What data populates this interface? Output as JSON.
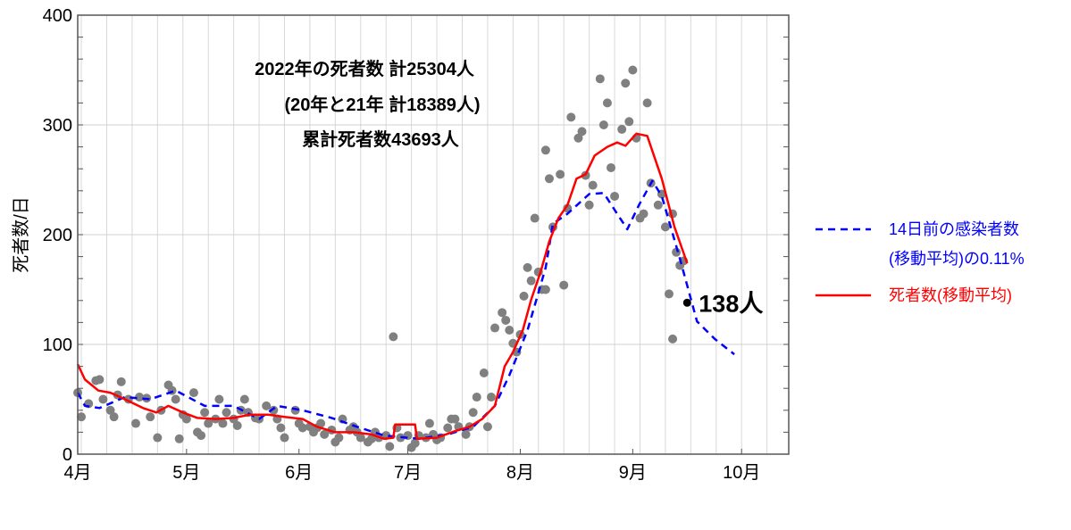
{
  "chart_data": {
    "type": "scatter+line",
    "ylabel": "死者数/日",
    "ylim": [
      0,
      400
    ],
    "yticks": [
      0,
      100,
      200,
      300,
      400
    ],
    "xlim_days_from_apr1": [
      0,
      196
    ],
    "xticks": [
      {
        "label": "4月",
        "day": 0
      },
      {
        "label": "5月",
        "day": 30
      },
      {
        "label": "6月",
        "day": 61
      },
      {
        "label": "7月",
        "day": 91
      },
      {
        "label": "8月",
        "day": 122
      },
      {
        "label": "9月",
        "day": 153
      },
      {
        "label": "10月",
        "day": 183
      }
    ],
    "grid": true,
    "annotations": [
      "2022年の死者数  計25304人",
      "(20年と21年 計18389人)",
      "累計死者数43693人"
    ],
    "last_point": {
      "day": 168,
      "value": 138,
      "label": "138人"
    },
    "legend": {
      "placement": "right-outside",
      "entries": [
        {
          "label_lines": [
            "14日前の感染者数",
            "(移動平均)の0.11%"
          ],
          "color": "#0000ff",
          "style": "dashed"
        },
        {
          "label_lines": [
            "死者数(移動平均)"
          ],
          "color": "#ff0000",
          "style": "solid"
        }
      ]
    },
    "series": [
      {
        "name": "14日前の感染者数(移動平均)の0.11%",
        "type": "line",
        "color": "#0000ff",
        "points": [
          [
            0,
            56
          ],
          [
            2,
            44
          ],
          [
            6,
            42
          ],
          [
            13,
            52
          ],
          [
            20,
            50
          ],
          [
            27,
            58
          ],
          [
            35,
            44
          ],
          [
            43,
            44
          ],
          [
            50,
            32
          ],
          [
            55,
            44
          ],
          [
            62,
            40
          ],
          [
            70,
            33
          ],
          [
            77,
            25
          ],
          [
            84.5,
            17
          ],
          [
            94,
            14
          ],
          [
            102,
            18
          ],
          [
            109,
            25
          ],
          [
            115,
            44
          ],
          [
            119,
            72
          ],
          [
            124,
            113
          ],
          [
            129,
            170
          ],
          [
            131,
            210
          ],
          [
            135,
            219
          ],
          [
            141,
            237
          ],
          [
            145,
            238
          ],
          [
            148.7,
            219
          ],
          [
            151.5,
            205
          ],
          [
            154.7,
            227
          ],
          [
            158.4,
            249
          ],
          [
            161,
            235
          ],
          [
            166,
            178
          ],
          [
            170.7,
            121
          ],
          [
            175.6,
            105
          ],
          [
            181,
            91
          ]
        ]
      },
      {
        "name": "死者数(移動平均)",
        "type": "line",
        "color": "#ff0000",
        "points": [
          [
            0,
            82
          ],
          [
            2,
            68
          ],
          [
            5.7,
            58
          ],
          [
            9,
            56
          ],
          [
            13,
            50
          ],
          [
            18,
            42
          ],
          [
            21.7,
            38
          ],
          [
            25,
            44
          ],
          [
            29,
            38
          ],
          [
            33,
            33
          ],
          [
            38,
            32
          ],
          [
            43,
            33
          ],
          [
            47.5,
            36
          ],
          [
            52.5,
            36
          ],
          [
            57,
            34
          ],
          [
            62,
            32
          ],
          [
            66,
            25
          ],
          [
            71,
            20
          ],
          [
            76,
            20
          ],
          [
            81,
            18
          ],
          [
            84.5,
            14
          ],
          [
            87,
            15
          ],
          [
            87.5,
            27
          ],
          [
            93,
            27
          ],
          [
            93.5,
            14
          ],
          [
            99,
            15
          ],
          [
            104,
            21
          ],
          [
            108,
            25
          ],
          [
            111.5,
            32
          ],
          [
            115,
            44
          ],
          [
            117.7,
            80
          ],
          [
            120,
            93
          ],
          [
            122.7,
            113
          ],
          [
            125,
            141
          ],
          [
            127.6,
            166
          ],
          [
            130,
            194
          ],
          [
            132.5,
            215
          ],
          [
            135,
            227
          ],
          [
            137.5,
            251
          ],
          [
            140,
            255
          ],
          [
            142.5,
            272
          ],
          [
            146,
            280
          ],
          [
            148.7,
            284
          ],
          [
            151,
            281
          ],
          [
            154,
            292
          ],
          [
            157,
            290
          ],
          [
            161,
            251
          ],
          [
            164.5,
            207
          ],
          [
            168,
            174
          ]
        ]
      },
      {
        "name": "死者数(日別)",
        "type": "scatter",
        "color": "#808080",
        "points": [
          [
            0,
            56
          ],
          [
            1,
            34
          ],
          [
            3,
            46
          ],
          [
            5,
            67
          ],
          [
            6,
            68
          ],
          [
            7,
            50
          ],
          [
            9,
            40
          ],
          [
            10,
            34
          ],
          [
            11,
            54
          ],
          [
            12,
            66
          ],
          [
            14,
            50
          ],
          [
            16,
            28
          ],
          [
            17,
            52
          ],
          [
            19,
            51
          ],
          [
            20,
            34
          ],
          [
            22,
            15
          ],
          [
            23,
            40
          ],
          [
            25,
            63
          ],
          [
            26,
            58
          ],
          [
            27,
            50
          ],
          [
            28,
            14
          ],
          [
            29,
            36
          ],
          [
            30,
            32
          ],
          [
            32,
            56
          ],
          [
            33,
            20
          ],
          [
            34,
            17
          ],
          [
            35,
            38
          ],
          [
            36,
            28
          ],
          [
            38,
            32
          ],
          [
            39,
            50
          ],
          [
            40,
            28
          ],
          [
            41,
            38
          ],
          [
            43,
            32
          ],
          [
            44,
            26
          ],
          [
            45,
            40
          ],
          [
            46,
            50
          ],
          [
            47,
            38
          ],
          [
            49,
            33
          ],
          [
            50,
            32
          ],
          [
            52,
            44
          ],
          [
            54,
            40
          ],
          [
            55,
            32
          ],
          [
            56,
            24
          ],
          [
            57,
            15
          ],
          [
            60,
            40
          ],
          [
            61,
            28
          ],
          [
            62,
            24
          ],
          [
            64,
            25
          ],
          [
            65,
            20
          ],
          [
            66,
            24
          ],
          [
            67,
            28
          ],
          [
            68,
            18
          ],
          [
            70,
            22
          ],
          [
            71,
            11
          ],
          [
            72,
            15
          ],
          [
            73,
            32
          ],
          [
            75,
            22
          ],
          [
            76,
            25
          ],
          [
            77,
            20
          ],
          [
            78,
            15
          ],
          [
            80,
            11
          ],
          [
            81,
            14
          ],
          [
            82,
            20
          ],
          [
            83,
            15
          ],
          [
            85,
            17
          ],
          [
            86,
            7
          ],
          [
            87,
            107
          ],
          [
            88,
            24
          ],
          [
            89,
            15
          ],
          [
            91,
            17
          ],
          [
            92,
            6
          ],
          [
            93,
            10
          ],
          [
            94,
            17
          ],
          [
            96,
            15
          ],
          [
            97,
            28
          ],
          [
            98,
            18
          ],
          [
            99,
            13
          ],
          [
            100,
            15
          ],
          [
            102,
            24
          ],
          [
            103,
            32
          ],
          [
            104,
            32
          ],
          [
            105,
            25
          ],
          [
            107,
            18
          ],
          [
            108,
            25
          ],
          [
            109,
            38
          ],
          [
            110,
            52
          ],
          [
            112,
            74
          ],
          [
            113,
            25
          ],
          [
            114,
            52
          ],
          [
            115,
            115
          ],
          [
            117,
            129
          ],
          [
            118,
            122
          ],
          [
            119,
            113
          ],
          [
            120,
            101
          ],
          [
            121,
            93
          ],
          [
            122,
            109
          ],
          [
            123,
            144
          ],
          [
            124,
            170
          ],
          [
            125,
            158
          ],
          [
            126,
            215
          ],
          [
            127,
            166
          ],
          [
            128,
            150
          ],
          [
            129,
            150
          ],
          [
            129,
            277
          ],
          [
            130,
            251
          ],
          [
            131,
            207
          ],
          [
            133,
            255
          ],
          [
            134,
            154
          ],
          [
            135,
            224
          ],
          [
            136,
            307
          ],
          [
            138,
            288
          ],
          [
            139,
            294
          ],
          [
            140,
            254
          ],
          [
            141,
            227
          ],
          [
            142,
            245
          ],
          [
            144,
            342
          ],
          [
            145,
            300
          ],
          [
            146,
            320
          ],
          [
            147,
            261
          ],
          [
            148,
            235
          ],
          [
            150,
            296
          ],
          [
            151,
            338
          ],
          [
            152,
            303
          ],
          [
            153,
            350
          ],
          [
            154,
            288
          ],
          [
            155,
            215
          ],
          [
            156,
            219
          ],
          [
            157,
            320
          ],
          [
            158,
            247
          ],
          [
            160,
            227
          ],
          [
            161,
            237
          ],
          [
            162,
            207
          ],
          [
            163,
            146
          ],
          [
            164,
            105
          ],
          [
            164,
            219
          ],
          [
            165,
            184
          ],
          [
            166,
            172
          ],
          [
            167,
            176
          ]
        ]
      }
    ]
  }
}
